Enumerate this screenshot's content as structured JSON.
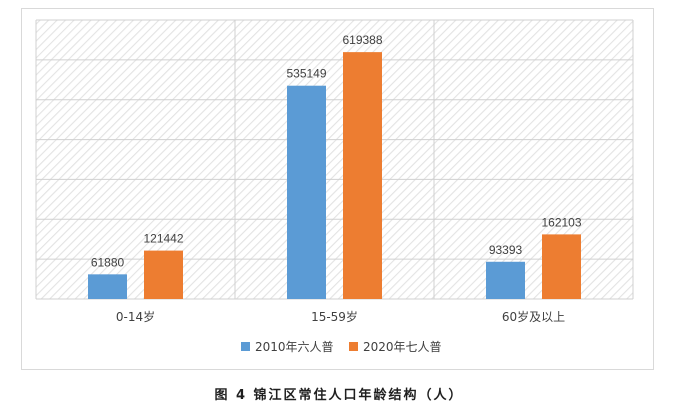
{
  "chart_data": {
    "type": "bar",
    "categories": [
      "0-14岁",
      "15-59岁",
      "60岁及以上"
    ],
    "series": [
      {
        "name": "2010年六人普",
        "values": [
          61880,
          535149,
          93393
        ],
        "color": "#5b9bd5"
      },
      {
        "name": "2020年七人普",
        "values": [
          121442,
          619388,
          162103
        ],
        "color": "#ed7d31"
      }
    ],
    "ylim": [
      0,
      700000
    ],
    "grid": true,
    "legend": "bottom",
    "caption": "图 4 锦江区常住人口年龄结构（人）"
  }
}
